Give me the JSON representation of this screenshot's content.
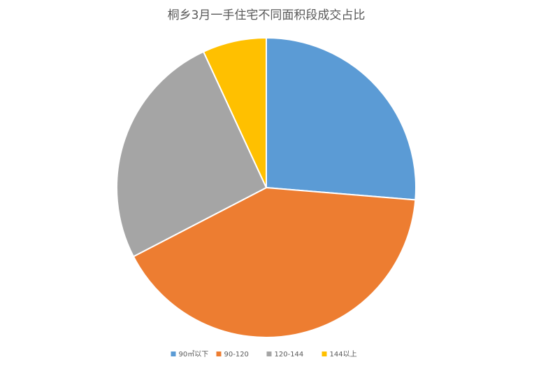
{
  "chart_data": {
    "type": "pie",
    "title": "桐乡3月一手住宅不同面积段成交占比",
    "categories": [
      "90㎡以下",
      "90-120",
      "120-144",
      "144以上"
    ],
    "values": [
      26.3,
      41.1,
      25.7,
      6.9
    ],
    "colors": [
      "#5b9bd5",
      "#ed7d31",
      "#a5a5a5",
      "#ffc000"
    ]
  }
}
